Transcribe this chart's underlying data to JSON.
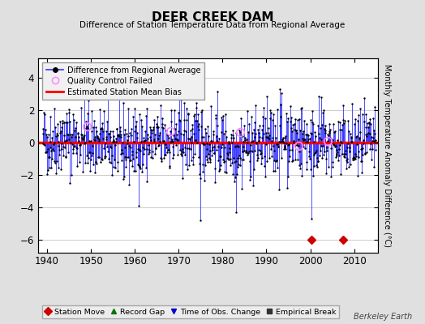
{
  "title": "DEER CREEK DAM",
  "subtitle": "Difference of Station Temperature Data from Regional Average",
  "ylabel": "Monthly Temperature Anomaly Difference (°C)",
  "xlim": [
    1938.0,
    2015.5
  ],
  "ylim": [
    -6.8,
    5.2
  ],
  "yticks": [
    -6,
    -4,
    -2,
    0,
    2,
    4
  ],
  "xticks": [
    1940,
    1950,
    1960,
    1970,
    1980,
    1990,
    2000,
    2010
  ],
  "line_color": "#3333ff",
  "dot_color": "#000000",
  "bias_color": "#ff0000",
  "bias_value": 0.0,
  "qc_color": "#ff88ff",
  "background_color": "#e0e0e0",
  "plot_bg_color": "#ffffff",
  "grid_color": "#cccccc",
  "station_move_color": "#cc0000",
  "time_obs_color": "#0000cc",
  "empirical_break_color": "#333333",
  "record_gap_color": "#007700",
  "seed": 42,
  "start_year": 1939,
  "end_year": 2014,
  "n_months": 912,
  "watermark": "Berkeley Earth",
  "legend_labels": [
    "Difference from Regional Average",
    "Quality Control Failed",
    "Estimated Station Mean Bias"
  ],
  "bottom_legend": [
    {
      "label": "Station Move",
      "marker": "D",
      "color": "#cc0000"
    },
    {
      "label": "Record Gap",
      "marker": "^",
      "color": "#007700"
    },
    {
      "label": "Time of Obs. Change",
      "marker": "v",
      "color": "#0000cc"
    },
    {
      "label": "Empirical Break",
      "marker": "s",
      "color": "#333333"
    }
  ],
  "station_move_years": [
    2000.25,
    2007.5
  ],
  "qc_fail_indices": [
    120,
    350,
    540,
    700,
    780
  ],
  "bias_linewidth": 2.5,
  "stem_linewidth": 0.6
}
